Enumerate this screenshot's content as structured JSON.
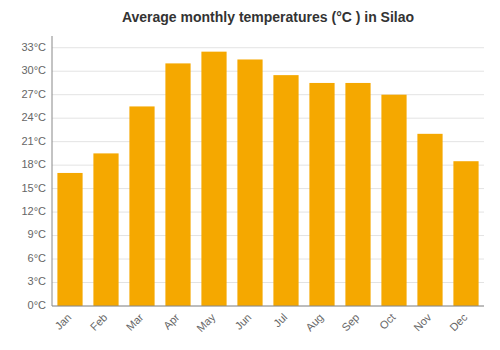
{
  "chart_data": {
    "type": "bar",
    "title": "Average monthly temperatures (°C ) in Silao",
    "categories": [
      "Jan",
      "Feb",
      "Mar",
      "Apr",
      "May",
      "Jun",
      "Jul",
      "Aug",
      "Sep",
      "Oct",
      "Nov",
      "Dec"
    ],
    "values": [
      17.0,
      19.5,
      25.5,
      31.0,
      32.5,
      31.5,
      29.5,
      28.5,
      28.5,
      27.0,
      22.0,
      18.5
    ],
    "color": "#F5A800",
    "ylim": [
      0,
      34.5
    ],
    "yticks": [
      {
        "value": 0,
        "label": "0°C"
      },
      {
        "value": 3,
        "label": "3°C"
      },
      {
        "value": 6,
        "label": "6°C"
      },
      {
        "value": 9,
        "label": "9°C"
      },
      {
        "value": 12,
        "label": "12°C"
      },
      {
        "value": 15,
        "label": "15°C"
      },
      {
        "value": 18,
        "label": "18°C"
      },
      {
        "value": 21,
        "label": "21°C"
      },
      {
        "value": 24,
        "label": "24°C"
      },
      {
        "value": 27,
        "label": "27°C"
      },
      {
        "value": 30,
        "label": "30°C"
      },
      {
        "value": 33,
        "label": "33°C"
      }
    ],
    "grid": true
  }
}
